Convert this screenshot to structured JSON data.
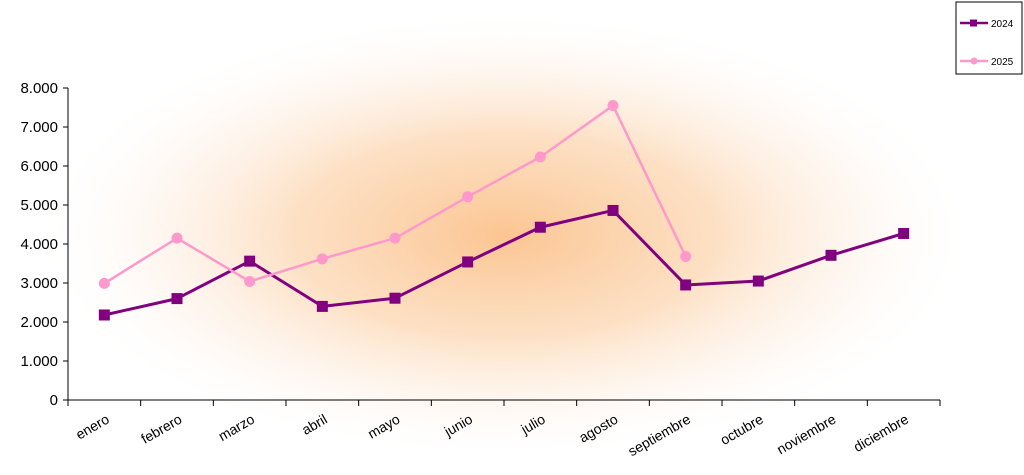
{
  "chart_data": {
    "type": "line",
    "title": "",
    "xlabel": "",
    "ylabel": "",
    "categories": [
      "enero",
      "febrero",
      "marzo",
      "abril",
      "mayo",
      "junio",
      "julio",
      "agosto",
      "septiembre",
      "octubre",
      "noviembre",
      "diciembre"
    ],
    "ylim": [
      0,
      8000
    ],
    "y_ticks": [
      0,
      1000,
      2000,
      3000,
      4000,
      5000,
      6000,
      7000,
      8000
    ],
    "y_tick_labels": [
      "0",
      "1.000",
      "2.000",
      "3.000",
      "4.000",
      "5.000",
      "6.000",
      "7.000",
      "8.000"
    ],
    "grid": false,
    "legend_position": "top-right",
    "series": [
      {
        "name": "2024",
        "color": "#800080",
        "marker": "square",
        "values": [
          2180,
          2600,
          3560,
          2400,
          2610,
          3540,
          4430,
          4860,
          2950,
          3050,
          3710,
          4270
        ]
      },
      {
        "name": "2025",
        "color": "#ff99cc",
        "marker": "circle",
        "values": [
          2990,
          4150,
          3040,
          3620,
          4150,
          5210,
          6230,
          7550,
          3680,
          null,
          null,
          null
        ]
      }
    ],
    "background": {
      "glow_color": "#fbc28c",
      "base_color": "#ffffff"
    }
  }
}
